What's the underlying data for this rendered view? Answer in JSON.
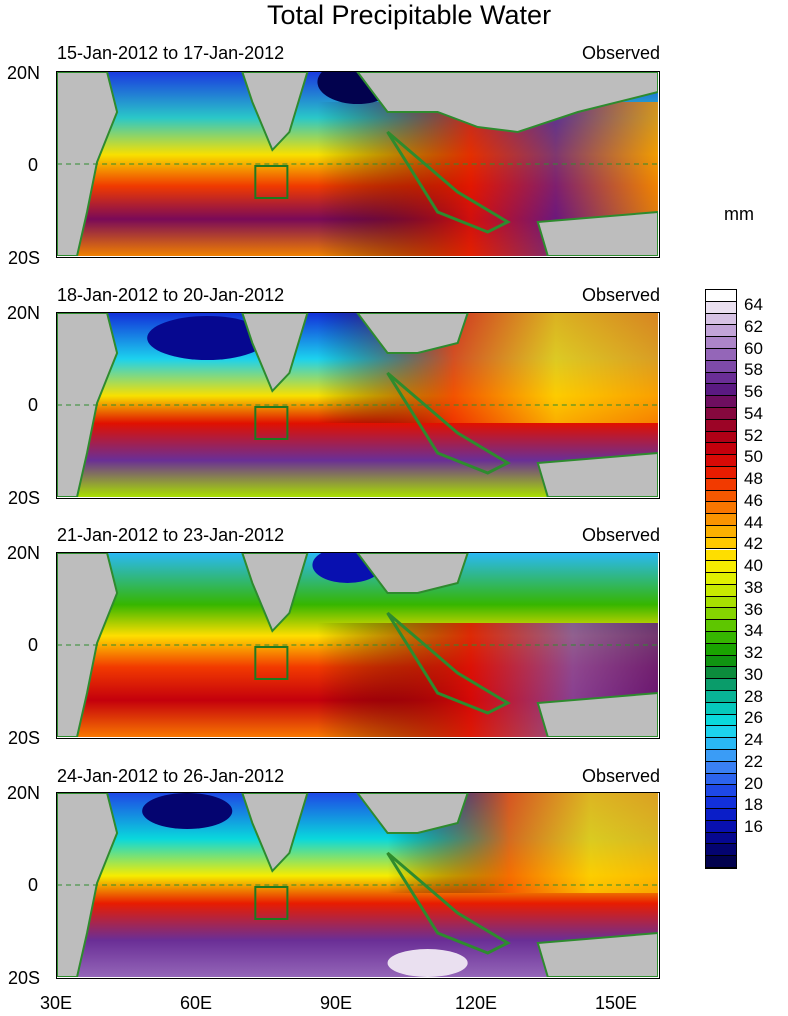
{
  "figure": {
    "title": "Total Precipitable Water",
    "unit_label": "mm"
  },
  "panels": [
    {
      "date_range": "15-Jan-2012 to 17-Jan-2012",
      "label": "Observed",
      "lat_top": "20N",
      "lat_mid": "0",
      "lat_bottom": "20S"
    },
    {
      "date_range": "18-Jan-2012 to 20-Jan-2012",
      "label": "Observed",
      "lat_top": "20N",
      "lat_mid": "0",
      "lat_bottom": "20S"
    },
    {
      "date_range": "21-Jan-2012 to 23-Jan-2012",
      "label": "Observed",
      "lat_top": "20N",
      "lat_mid": "0",
      "lat_bottom": "20S"
    },
    {
      "date_range": "24-Jan-2012 to 26-Jan-2012",
      "label": "Observed",
      "lat_top": "20N",
      "lat_mid": "0",
      "lat_bottom": "20S"
    }
  ],
  "lon_labels": [
    "30E",
    "60E",
    "90E",
    "120E",
    "150E"
  ],
  "colorbar": {
    "labels": [
      "64",
      "62",
      "60",
      "58",
      "56",
      "54",
      "52",
      "50",
      "48",
      "46",
      "44",
      "42",
      "40",
      "38",
      "36",
      "34",
      "32",
      "30",
      "28",
      "26",
      "24",
      "22",
      "20",
      "18",
      "16"
    ],
    "colors_top_to_bottom": [
      "#ffffff",
      "#eae0f0",
      "#d6c2e4",
      "#c2a4d8",
      "#ac85c8",
      "#9466b8",
      "#7e4aa8",
      "#6a2e96",
      "#5a1a82",
      "#6e0e60",
      "#86083e",
      "#9c0426",
      "#b00016",
      "#c4000c",
      "#d80a06",
      "#e81c00",
      "#f23a00",
      "#f65800",
      "#f87600",
      "#fa9400",
      "#fcb000",
      "#fec800",
      "#fede00",
      "#f6ec00",
      "#e0f000",
      "#c8ea00",
      "#a8e000",
      "#86d400",
      "#5ec600",
      "#36b600",
      "#1aa400",
      "#109410",
      "#0c8c3c",
      "#0a9c6a",
      "#08b496",
      "#06c8bc",
      "#0ad8dc",
      "#1cd2ee",
      "#2ab8f4",
      "#3a9cf6",
      "#3a80f4",
      "#2c64ee",
      "#1e48e6",
      "#1230da",
      "#0a1ec8",
      "#0810b0",
      "#060890",
      "#040470",
      "#02024e"
    ]
  },
  "colors": {
    "land": "#bdbdbd",
    "coast": "#2e8b2e",
    "box": "#1e7a1e"
  }
}
